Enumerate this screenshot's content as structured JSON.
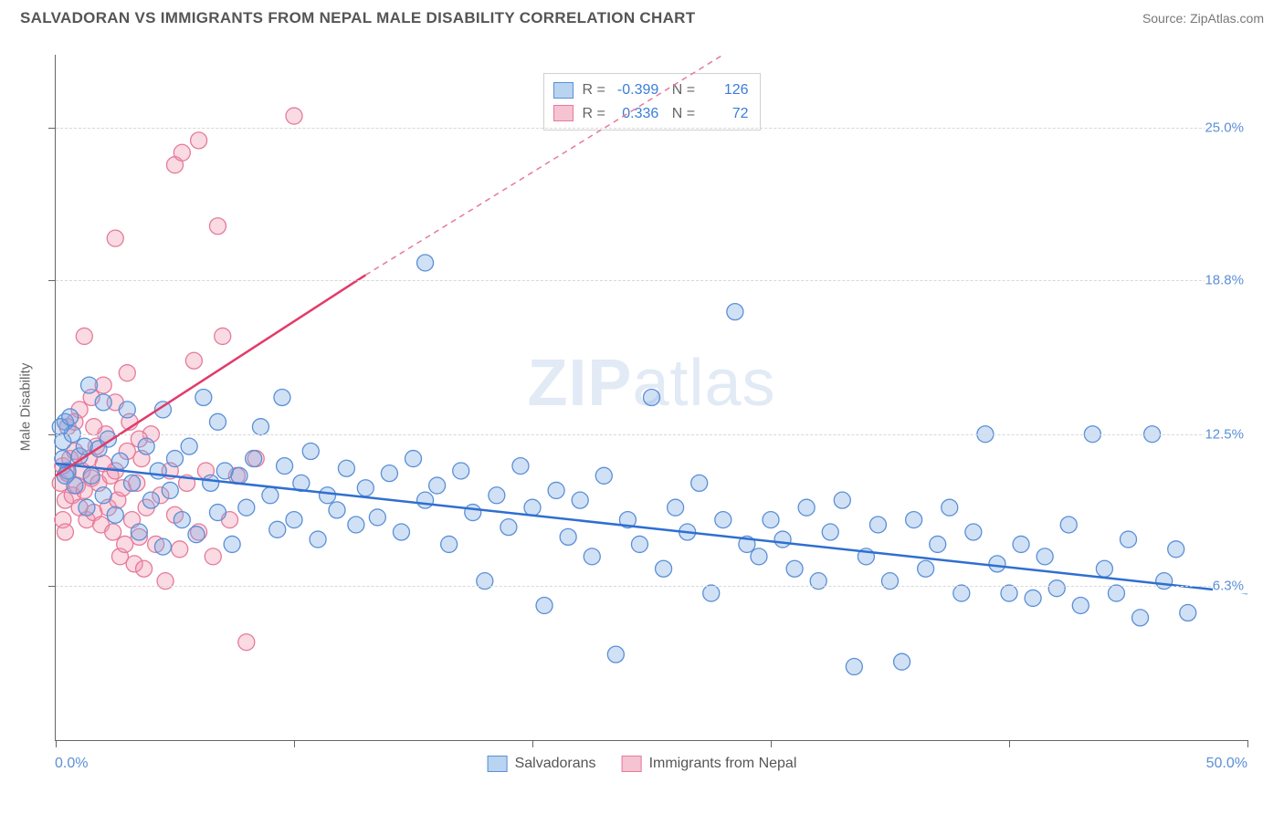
{
  "header": {
    "title": "SALVADORAN VS IMMIGRANTS FROM NEPAL MALE DISABILITY CORRELATION CHART",
    "source": "Source: ZipAtlas.com"
  },
  "watermark": "ZIPatlas",
  "chart": {
    "type": "scatter",
    "yaxis_title": "Male Disability",
    "xlim": [
      0,
      50
    ],
    "ylim": [
      0,
      28
    ],
    "xlabel_min": "0.0%",
    "xlabel_max": "50.0%",
    "yticks": [
      {
        "v": 6.3,
        "label": "6.3%"
      },
      {
        "v": 12.5,
        "label": "12.5%"
      },
      {
        "v": 18.8,
        "label": "18.8%"
      },
      {
        "v": 25.0,
        "label": "25.0%"
      }
    ],
    "xticks_at": [
      0,
      10,
      20,
      30,
      40,
      50
    ],
    "grid_color": "#d8d8d8",
    "background_color": "#ffffff",
    "series": [
      {
        "name": "Salvadorans",
        "color_fill": "rgba(120,170,230,0.35)",
        "color_stroke": "#5b8fd6",
        "swatch_fill": "#b8d4f0",
        "swatch_border": "#5b8fd6",
        "marker_r": 9,
        "stats": {
          "R": "-0.399",
          "N": "126"
        },
        "trend": {
          "x1": 0,
          "y1": 11.3,
          "x2": 50,
          "y2": 6.0,
          "dash": false,
          "color": "#2f6fd0",
          "width": 2.5
        },
        "points": [
          [
            0.3,
            12.2
          ],
          [
            0.4,
            13.0
          ],
          [
            0.5,
            11.0
          ],
          [
            0.7,
            12.5
          ],
          [
            0.8,
            10.4
          ],
          [
            1.0,
            11.6
          ],
          [
            1.2,
            12.0
          ],
          [
            1.3,
            9.5
          ],
          [
            1.5,
            10.8
          ],
          [
            1.8,
            11.9
          ],
          [
            2.0,
            10.0
          ],
          [
            2.2,
            12.3
          ],
          [
            2.5,
            9.2
          ],
          [
            2.7,
            11.4
          ],
          [
            3.0,
            13.5
          ],
          [
            3.2,
            10.5
          ],
          [
            3.5,
            8.5
          ],
          [
            3.8,
            12.0
          ],
          [
            4.0,
            9.8
          ],
          [
            4.3,
            11.0
          ],
          [
            4.5,
            7.9
          ],
          [
            4.8,
            10.2
          ],
          [
            5.0,
            11.5
          ],
          [
            5.3,
            9.0
          ],
          [
            5.6,
            12.0
          ],
          [
            5.9,
            8.4
          ],
          [
            6.2,
            14.0
          ],
          [
            6.5,
            10.5
          ],
          [
            6.8,
            9.3
          ],
          [
            7.1,
            11.0
          ],
          [
            7.4,
            8.0
          ],
          [
            7.7,
            10.8
          ],
          [
            8.0,
            9.5
          ],
          [
            8.3,
            11.5
          ],
          [
            8.6,
            12.8
          ],
          [
            9.0,
            10.0
          ],
          [
            9.3,
            8.6
          ],
          [
            9.6,
            11.2
          ],
          [
            10.0,
            9.0
          ],
          [
            10.3,
            10.5
          ],
          [
            10.7,
            11.8
          ],
          [
            11.0,
            8.2
          ],
          [
            11.4,
            10.0
          ],
          [
            11.8,
            9.4
          ],
          [
            12.2,
            11.1
          ],
          [
            12.6,
            8.8
          ],
          [
            13.0,
            10.3
          ],
          [
            13.5,
            9.1
          ],
          [
            14.0,
            10.9
          ],
          [
            14.5,
            8.5
          ],
          [
            15.0,
            11.5
          ],
          [
            15.5,
            9.8
          ],
          [
            16.0,
            10.4
          ],
          [
            16.5,
            8.0
          ],
          [
            17.0,
            11.0
          ],
          [
            17.5,
            9.3
          ],
          [
            18.0,
            6.5
          ],
          [
            18.5,
            10.0
          ],
          [
            19.0,
            8.7
          ],
          [
            19.5,
            11.2
          ],
          [
            20.0,
            9.5
          ],
          [
            20.5,
            5.5
          ],
          [
            21.0,
            10.2
          ],
          [
            21.5,
            8.3
          ],
          [
            22.0,
            9.8
          ],
          [
            22.5,
            7.5
          ],
          [
            23.0,
            10.8
          ],
          [
            23.5,
            3.5
          ],
          [
            24.0,
            9.0
          ],
          [
            24.5,
            8.0
          ],
          [
            25.0,
            14.0
          ],
          [
            25.5,
            7.0
          ],
          [
            26.0,
            9.5
          ],
          [
            26.5,
            8.5
          ],
          [
            27.0,
            10.5
          ],
          [
            27.5,
            6.0
          ],
          [
            28.0,
            9.0
          ],
          [
            28.5,
            17.5
          ],
          [
            29.0,
            8.0
          ],
          [
            29.5,
            7.5
          ],
          [
            30.0,
            9.0
          ],
          [
            30.5,
            8.2
          ],
          [
            31.0,
            7.0
          ],
          [
            31.5,
            9.5
          ],
          [
            32.0,
            6.5
          ],
          [
            32.5,
            8.5
          ],
          [
            33.0,
            9.8
          ],
          [
            33.5,
            3.0
          ],
          [
            34.0,
            7.5
          ],
          [
            34.5,
            8.8
          ],
          [
            35.0,
            6.5
          ],
          [
            35.5,
            3.2
          ],
          [
            36.0,
            9.0
          ],
          [
            36.5,
            7.0
          ],
          [
            37.0,
            8.0
          ],
          [
            37.5,
            9.5
          ],
          [
            38.0,
            6.0
          ],
          [
            38.5,
            8.5
          ],
          [
            39.0,
            12.5
          ],
          [
            39.5,
            7.2
          ],
          [
            40.0,
            6.0
          ],
          [
            40.5,
            8.0
          ],
          [
            41.0,
            5.8
          ],
          [
            41.5,
            7.5
          ],
          [
            42.0,
            6.2
          ],
          [
            42.5,
            8.8
          ],
          [
            43.0,
            5.5
          ],
          [
            43.5,
            12.5
          ],
          [
            44.0,
            7.0
          ],
          [
            44.5,
            6.0
          ],
          [
            45.0,
            8.2
          ],
          [
            45.5,
            5.0
          ],
          [
            46.0,
            12.5
          ],
          [
            46.5,
            6.5
          ],
          [
            47.0,
            7.8
          ],
          [
            47.5,
            5.2
          ],
          [
            0.2,
            12.8
          ],
          [
            0.6,
            13.2
          ],
          [
            1.4,
            14.5
          ],
          [
            9.5,
            14.0
          ],
          [
            15.5,
            19.5
          ],
          [
            2.0,
            13.8
          ],
          [
            0.3,
            11.5
          ],
          [
            0.4,
            10.8
          ],
          [
            4.5,
            13.5
          ],
          [
            6.8,
            13.0
          ]
        ]
      },
      {
        "name": "Immigrants from Nepal",
        "color_fill": "rgba(240,150,175,0.35)",
        "color_stroke": "#e67a9a",
        "swatch_fill": "#f5c3d2",
        "swatch_border": "#e67a9a",
        "marker_r": 9,
        "stats": {
          "R": "0.336",
          "N": "72"
        },
        "trend_solid": {
          "x1": 0,
          "y1": 10.8,
          "x2": 13,
          "y2": 19.0,
          "color": "#e23b6a",
          "width": 2.5
        },
        "trend_dash": {
          "x1": 13,
          "y1": 19.0,
          "x2": 28,
          "y2": 28.0,
          "color": "#e67a9a",
          "width": 1.5
        },
        "points": [
          [
            0.2,
            10.5
          ],
          [
            0.3,
            11.2
          ],
          [
            0.4,
            9.8
          ],
          [
            0.5,
            10.9
          ],
          [
            0.6,
            11.5
          ],
          [
            0.7,
            10.0
          ],
          [
            0.8,
            11.8
          ],
          [
            0.9,
            10.4
          ],
          [
            1.0,
            9.5
          ],
          [
            1.1,
            11.0
          ],
          [
            1.2,
            10.2
          ],
          [
            1.3,
            9.0
          ],
          [
            1.4,
            11.5
          ],
          [
            1.5,
            10.7
          ],
          [
            1.6,
            9.3
          ],
          [
            1.7,
            12.0
          ],
          [
            1.8,
            10.5
          ],
          [
            1.9,
            8.8
          ],
          [
            2.0,
            11.3
          ],
          [
            2.1,
            12.5
          ],
          [
            2.2,
            9.5
          ],
          [
            2.3,
            10.8
          ],
          [
            2.4,
            8.5
          ],
          [
            2.5,
            11.0
          ],
          [
            2.6,
            9.8
          ],
          [
            2.7,
            7.5
          ],
          [
            2.8,
            10.3
          ],
          [
            2.9,
            8.0
          ],
          [
            3.0,
            11.8
          ],
          [
            3.1,
            13.0
          ],
          [
            3.2,
            9.0
          ],
          [
            3.3,
            7.2
          ],
          [
            3.4,
            10.5
          ],
          [
            3.5,
            8.3
          ],
          [
            3.6,
            11.5
          ],
          [
            3.7,
            7.0
          ],
          [
            3.8,
            9.5
          ],
          [
            4.0,
            12.5
          ],
          [
            4.2,
            8.0
          ],
          [
            4.4,
            10.0
          ],
          [
            4.6,
            6.5
          ],
          [
            4.8,
            11.0
          ],
          [
            5.0,
            9.2
          ],
          [
            5.2,
            7.8
          ],
          [
            5.5,
            10.5
          ],
          [
            5.8,
            15.5
          ],
          [
            6.0,
            8.5
          ],
          [
            6.3,
            11.0
          ],
          [
            6.6,
            7.5
          ],
          [
            7.0,
            16.5
          ],
          [
            7.3,
            9.0
          ],
          [
            7.6,
            10.8
          ],
          [
            8.0,
            4.0
          ],
          [
            8.4,
            11.5
          ],
          [
            0.5,
            12.8
          ],
          [
            1.0,
            13.5
          ],
          [
            1.5,
            14.0
          ],
          [
            2.0,
            14.5
          ],
          [
            2.5,
            13.8
          ],
          [
            3.0,
            15.0
          ],
          [
            3.5,
            12.3
          ],
          [
            1.2,
            16.5
          ],
          [
            0.8,
            13.0
          ],
          [
            1.6,
            12.8
          ],
          [
            2.5,
            20.5
          ],
          [
            5.0,
            23.5
          ],
          [
            5.3,
            24.0
          ],
          [
            6.0,
            24.5
          ],
          [
            10.0,
            25.5
          ],
          [
            6.8,
            21.0
          ],
          [
            0.3,
            9.0
          ],
          [
            0.4,
            8.5
          ]
        ]
      }
    ],
    "bottom_legend": [
      {
        "label": "Salvadorans",
        "fill": "#b8d4f0",
        "border": "#5b8fd6"
      },
      {
        "label": "Immigrants from Nepal",
        "fill": "#f5c3d2",
        "border": "#e67a9a"
      }
    ]
  }
}
